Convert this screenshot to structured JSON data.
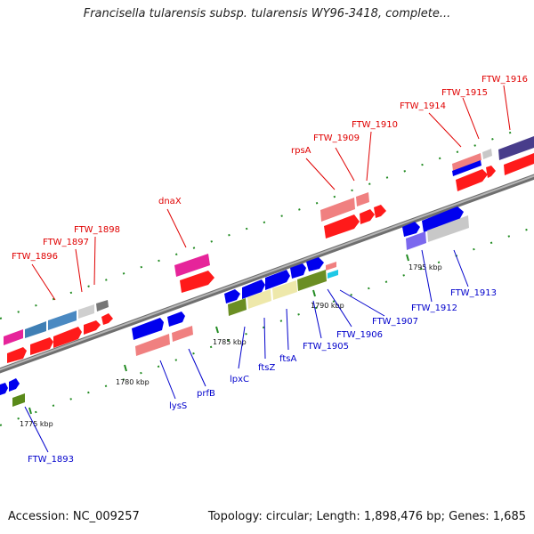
{
  "title": "Francisella tularensis subsp. tularensis WY96-3418, complete...",
  "colors": {
    "upper_label": "#e00000",
    "lower_label": "#0000cc",
    "tick": "#228b22",
    "backbone": "#8a8a8a"
  },
  "scale": {
    "ticks": [
      "1775 kbp",
      "1780 kbp",
      "1785 kbp",
      "1790 kbp",
      "1795 kbp"
    ]
  },
  "labels_upper": [
    "FTW_1896",
    "FTW_1897",
    "FTW_1898",
    "dnaX",
    "rpsA",
    "FTW_1909",
    "FTW_1910",
    "FTW_1914",
    "FTW_1915",
    "FTW_1916"
  ],
  "labels_lower": [
    "FTW_1893",
    "lysS",
    "prfB",
    "lpxC",
    "ftsZ",
    "ftsA",
    "FTW_1905",
    "FTW_1906",
    "FTW_1907",
    "FTW_1912",
    "FTW_1913"
  ],
  "footer": {
    "accession": "Accession: NC_009257",
    "summary": "Topology: circular; Length: 1,898,476 bp; Genes: 1,685"
  }
}
